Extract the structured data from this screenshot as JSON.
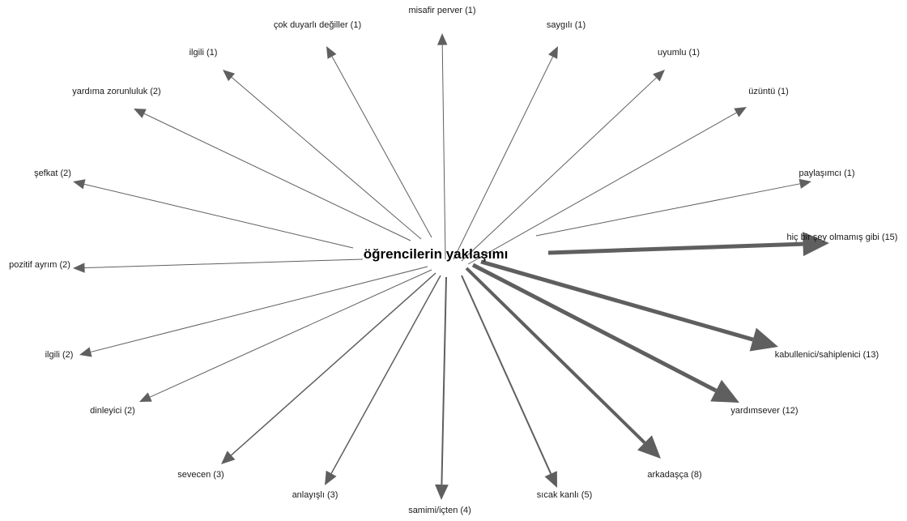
{
  "center": {
    "label": "öğrencilerin yaklaşımı"
  },
  "nodes": [
    {
      "label": "misafir perver (1)",
      "count": 1
    },
    {
      "label": "saygılı (1)",
      "count": 1
    },
    {
      "label": "uyumlu (1)",
      "count": 1
    },
    {
      "label": "üzüntü (1)",
      "count": 1
    },
    {
      "label": "paylaşımcı (1)",
      "count": 1
    },
    {
      "label": "hiç bir şey olmamış gibi (15)",
      "count": 15
    },
    {
      "label": "kabullenici/sahiplenici (13)",
      "count": 13
    },
    {
      "label": "yardımsever (12)",
      "count": 12
    },
    {
      "label": "arkadaşça (8)",
      "count": 8
    },
    {
      "label": "sıcak kanlı (5)",
      "count": 5
    },
    {
      "label": "samimi/içten (4)",
      "count": 4
    },
    {
      "label": "anlayışlı (3)",
      "count": 3
    },
    {
      "label": "sevecen (3)",
      "count": 3
    },
    {
      "label": "dinleyici (2)",
      "count": 2
    },
    {
      "label": "ilgili (2)",
      "count": 2
    },
    {
      "label": "pozitif ayrım (2)",
      "count": 2
    },
    {
      "label": "şefkat (2)",
      "count": 2
    },
    {
      "label": "yardıma zorunluluk (2)",
      "count": 2
    },
    {
      "label": "ilgili (1)",
      "count": 1
    },
    {
      "label": "çok duyarlı değiller (1)",
      "count": 1
    }
  ],
  "colors": {
    "edge": "#5f5f5f",
    "text": "#1a1a1a"
  }
}
